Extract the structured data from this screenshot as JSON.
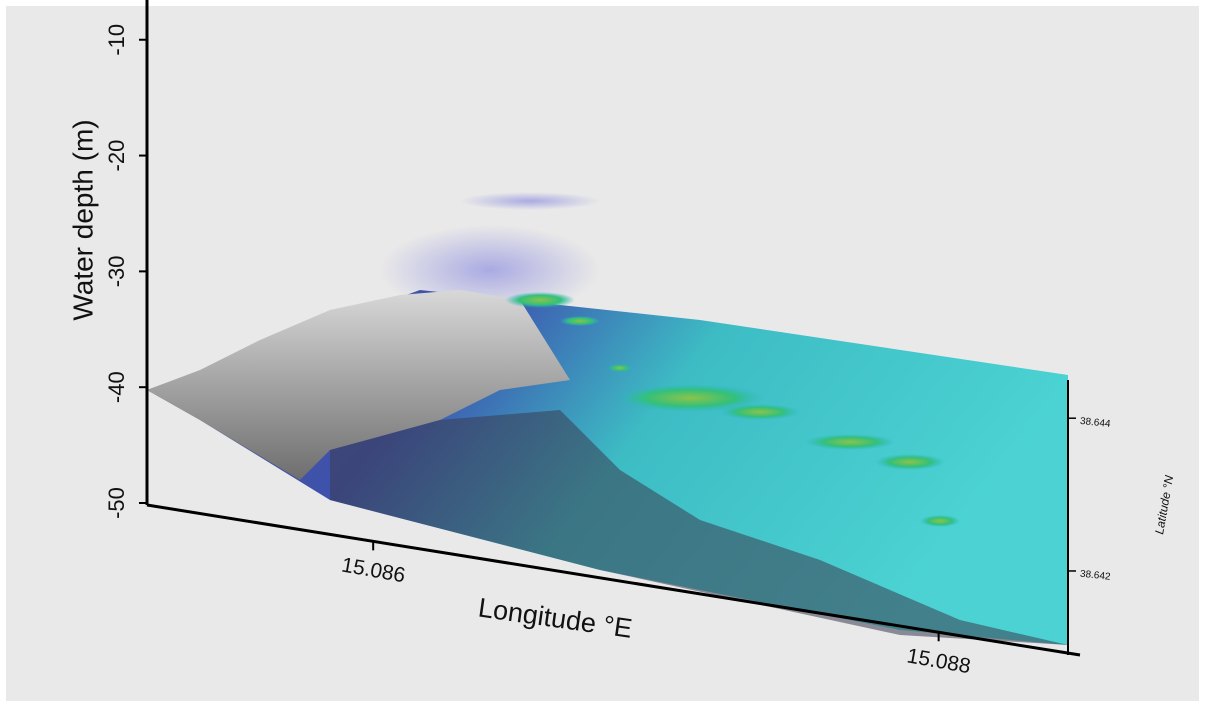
{
  "chart_data": {
    "type": "surface3d",
    "zlabel": "Water depth (m)",
    "xlabel": "Longitude °E",
    "ylabel": "Latitude °N",
    "zlim": [
      -50,
      -7
    ],
    "zticks": [
      -10,
      -20,
      -30,
      -40,
      -50
    ],
    "xlim": [
      15.0852,
      15.0885
    ],
    "xticks": [
      15.086,
      15.088
    ],
    "ylim": [
      38.6409,
      38.6445
    ],
    "yticks": [
      38.644,
      38.642
    ]
  }
}
